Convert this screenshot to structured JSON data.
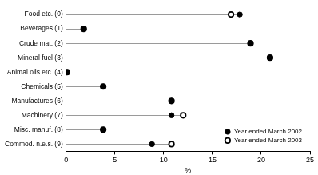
{
  "chart_data": {
    "type": "dot",
    "orientation": "horizontal",
    "categories": [
      "Food etc. (0)",
      "Beverages (1)",
      "Crude mat. (2)",
      "Mineral fuel (3)",
      "Animal oils etc. (4)",
      "Chemicals (5)",
      "Manufactures (6)",
      "Machinery (7)",
      "Misc. manuf. (8)",
      "Commod. n.e.s. (9)"
    ],
    "series": [
      {
        "name": "Year ended March 2002",
        "color": "#000000",
        "marker": "filled",
        "values": [
          17.8,
          1.8,
          18.9,
          20.9,
          0.1,
          3.8,
          10.8,
          10.8,
          3.8,
          8.8
        ]
      },
      {
        "name": "Year ended March 2003",
        "color": "#000000",
        "marker": "open",
        "values": [
          16.9,
          1.8,
          18.9,
          20.9,
          0.1,
          3.8,
          10.8,
          12.0,
          3.8,
          10.8
        ]
      }
    ],
    "x_label": "%",
    "xlim": [
      0,
      25
    ],
    "xticks": [
      0,
      5,
      10,
      15,
      20,
      25
    ],
    "grid": false,
    "legend": "bottom right"
  }
}
